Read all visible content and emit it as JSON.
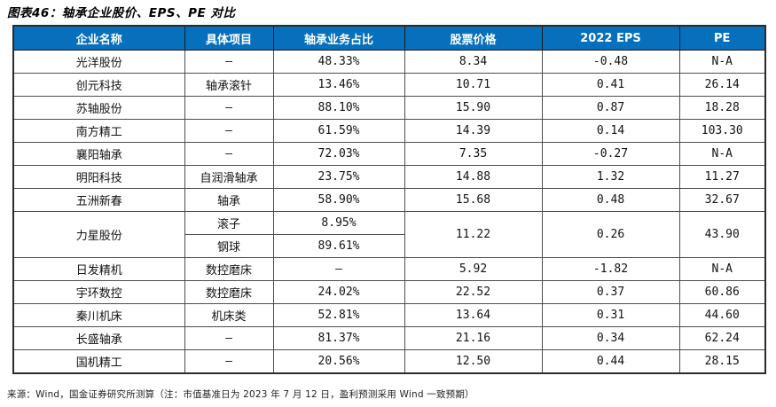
{
  "title": "图表46：轴承企业股价、EPS、PE 对比",
  "source_note": "来源：Wind，国金证券研究所测算（注：市值基准日为 2023 年 7 月 12 日，盈利预测采用 Wind 一致预期）",
  "colors": {
    "header_bg": "#0770BC",
    "header_text": "#FFFFFF",
    "outer_border": "#2B2B2B",
    "inner_border": "#4D4D4D"
  },
  "table": {
    "headers": [
      "企业名称",
      "具体项目",
      "轴承业务占比",
      "股票价格",
      "2022 EPS",
      "PE"
    ],
    "rows": [
      {
        "cells": [
          {
            "t": "光洋股份"
          },
          {
            "t": "–"
          },
          {
            "t": "48.33%"
          },
          {
            "t": "8.34"
          },
          {
            "t": "-0.48"
          },
          {
            "t": "N-A"
          }
        ]
      },
      {
        "cells": [
          {
            "t": "创元科技"
          },
          {
            "t": "轴承滚针"
          },
          {
            "t": "13.46%"
          },
          {
            "t": "10.71"
          },
          {
            "t": "0.41"
          },
          {
            "t": "26.14"
          }
        ]
      },
      {
        "cells": [
          {
            "t": "苏轴股份"
          },
          {
            "t": "–"
          },
          {
            "t": "88.10%"
          },
          {
            "t": "15.90"
          },
          {
            "t": "0.87"
          },
          {
            "t": "18.28"
          }
        ]
      },
      {
        "cells": [
          {
            "t": "南方精工"
          },
          {
            "t": "–"
          },
          {
            "t": "61.59%"
          },
          {
            "t": "14.39"
          },
          {
            "t": "0.14"
          },
          {
            "t": "103.30"
          }
        ]
      },
      {
        "cells": [
          {
            "t": "襄阳轴承"
          },
          {
            "t": "–"
          },
          {
            "t": "72.03%"
          },
          {
            "t": "7.35"
          },
          {
            "t": "-0.27"
          },
          {
            "t": "N-A"
          }
        ]
      },
      {
        "cells": [
          {
            "t": "明阳科技"
          },
          {
            "t": "自润滑轴承"
          },
          {
            "t": "23.75%"
          },
          {
            "t": "14.88"
          },
          {
            "t": "1.32"
          },
          {
            "t": "11.27"
          }
        ]
      },
      {
        "cells": [
          {
            "t": "五洲新春"
          },
          {
            "t": "轴承"
          },
          {
            "t": "58.90%"
          },
          {
            "t": "15.68"
          },
          {
            "t": "0.48"
          },
          {
            "t": "32.67"
          }
        ]
      },
      {
        "cells": [
          {
            "t": "力星股份",
            "rowspan": 2
          },
          {
            "t": "滚子"
          },
          {
            "t": "8.95%"
          },
          {
            "t": "11.22",
            "rowspan": 2
          },
          {
            "t": "0.26",
            "rowspan": 2
          },
          {
            "t": "43.90",
            "rowspan": 2
          }
        ]
      },
      {
        "cells": [
          {
            "t": "钢球"
          },
          {
            "t": "89.61%"
          }
        ]
      },
      {
        "cells": [
          {
            "t": "日发精机"
          },
          {
            "t": "数控磨床"
          },
          {
            "t": "–"
          },
          {
            "t": "5.92"
          },
          {
            "t": "-1.82"
          },
          {
            "t": "N-A"
          }
        ]
      },
      {
        "cells": [
          {
            "t": "宇环数控"
          },
          {
            "t": "数控磨床"
          },
          {
            "t": "24.02%"
          },
          {
            "t": "22.52"
          },
          {
            "t": "0.37"
          },
          {
            "t": "60.86"
          }
        ]
      },
      {
        "cells": [
          {
            "t": "秦川机床"
          },
          {
            "t": "机床类"
          },
          {
            "t": "52.81%"
          },
          {
            "t": "13.64"
          },
          {
            "t": "0.31"
          },
          {
            "t": "44.60"
          }
        ]
      },
      {
        "cells": [
          {
            "t": "长盛轴承"
          },
          {
            "t": "–"
          },
          {
            "t": "81.37%"
          },
          {
            "t": "21.16"
          },
          {
            "t": "0.34"
          },
          {
            "t": "62.24"
          }
        ]
      },
      {
        "cells": [
          {
            "t": "国机精工"
          },
          {
            "t": "–"
          },
          {
            "t": "20.56%"
          },
          {
            "t": "12.50"
          },
          {
            "t": "0.44"
          },
          {
            "t": "28.15"
          }
        ]
      }
    ]
  }
}
